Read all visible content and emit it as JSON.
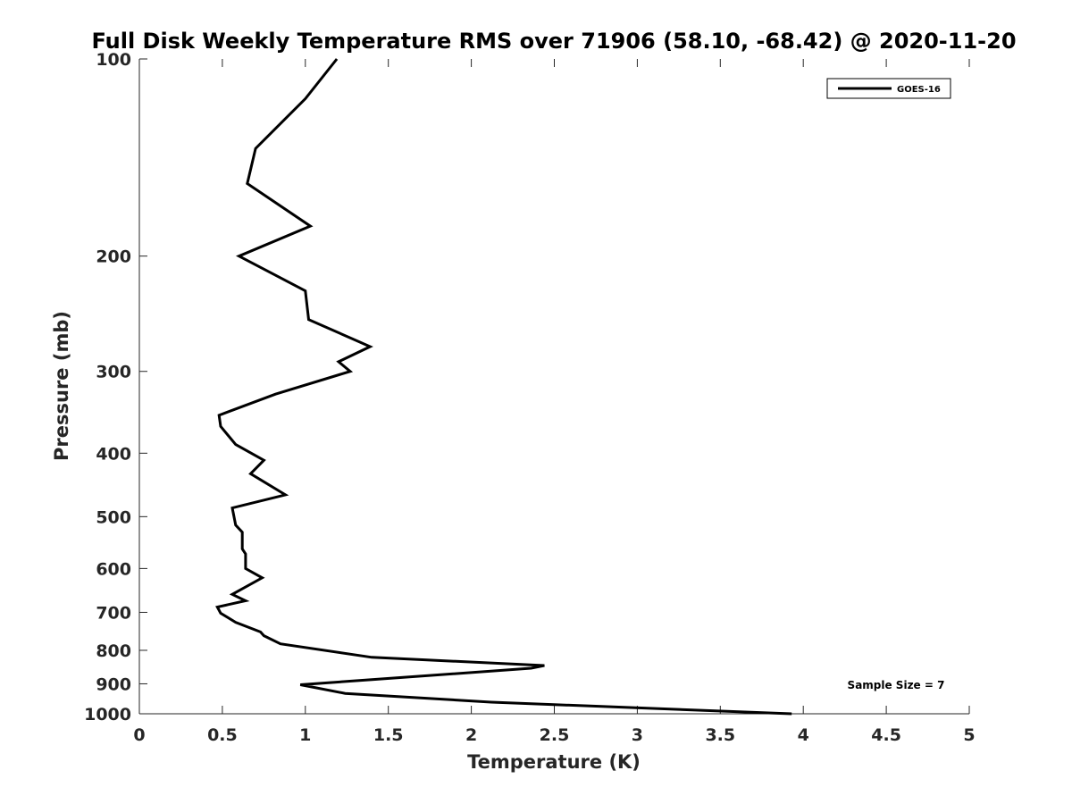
{
  "chart_data": {
    "type": "line",
    "title": "Full Disk Weekly Temperature RMS over 71906 (58.10, -68.42) @ 2020-11-20",
    "xlabel": "Temperature (K)",
    "ylabel": "Pressure (mb)",
    "xlim": [
      0,
      5
    ],
    "ylim": [
      100,
      1000
    ],
    "y_scale": "log",
    "y_reversed": true,
    "xticks": [
      "0",
      "0.5",
      "1",
      "1.5",
      "2",
      "2.5",
      "3",
      "3.5",
      "4",
      "4.5",
      "5"
    ],
    "xtick_values": [
      0,
      0.5,
      1,
      1.5,
      2,
      2.5,
      3,
      3.5,
      4,
      4.5,
      5
    ],
    "yticks": [
      "100",
      "200",
      "300",
      "400",
      "500",
      "600",
      "700",
      "800",
      "900",
      "1000"
    ],
    "ytick_values": [
      100,
      200,
      300,
      400,
      500,
      600,
      700,
      800,
      900,
      1000
    ],
    "grid": false,
    "legend_position": "top-right",
    "annotation": "Sample Size = 7",
    "series": [
      {
        "name": "GOES-16",
        "color": "#000000",
        "x": [
          1.19,
          1.0,
          0.7,
          0.65,
          1.03,
          0.6,
          1.0,
          1.02,
          1.39,
          1.2,
          1.27,
          0.82,
          0.48,
          0.49,
          0.58,
          0.75,
          0.67,
          0.88,
          0.56,
          0.58,
          0.62,
          0.62,
          0.64,
          0.64,
          0.74,
          0.56,
          0.64,
          0.47,
          0.49,
          0.58,
          0.73,
          0.75,
          0.85,
          1.4,
          2.44,
          2.36,
          0.97,
          1.24,
          2.12,
          3.93
        ],
        "y": [
          100,
          115,
          137,
          155,
          180,
          200,
          226,
          250,
          275,
          290,
          300,
          325,
          350,
          364,
          388,
          410,
          430,
          463,
          485,
          515,
          528,
          560,
          570,
          600,
          620,
          657,
          672,
          687,
          702,
          725,
          750,
          760,
          782,
          820,
          844,
          852,
          903,
          931,
          960,
          1000
        ]
      }
    ]
  }
}
